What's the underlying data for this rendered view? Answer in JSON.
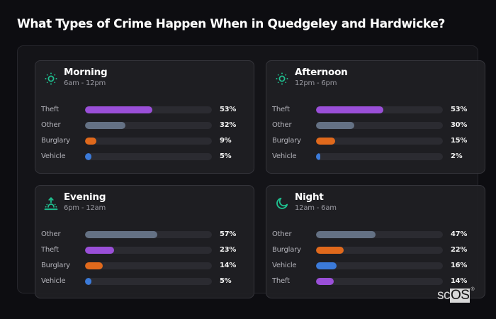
{
  "title": "What Types of Crime Happen When in Quedgeley and Hardwicke?",
  "brand": {
    "sc": "sc",
    "os": "OS",
    "reg": "®"
  },
  "colors": {
    "Theft": "#9a4fd8",
    "Other": "#647184",
    "Burglary": "#e0691c",
    "Vehicle": "#3b7ad9",
    "icon": "#1fbf8f",
    "track": "#2b2b31"
  },
  "periods": [
    {
      "name": "Morning",
      "time": "6am - 12pm",
      "icon": "sun-icon",
      "rows": [
        {
          "label": "Theft",
          "value": 53,
          "pct": "53%"
        },
        {
          "label": "Other",
          "value": 32,
          "pct": "32%"
        },
        {
          "label": "Burglary",
          "value": 9,
          "pct": "9%"
        },
        {
          "label": "Vehicle",
          "value": 5,
          "pct": "5%"
        }
      ]
    },
    {
      "name": "Afternoon",
      "time": "12pm - 6pm",
      "icon": "sun-icon",
      "rows": [
        {
          "label": "Theft",
          "value": 53,
          "pct": "53%"
        },
        {
          "label": "Other",
          "value": 30,
          "pct": "30%"
        },
        {
          "label": "Burglary",
          "value": 15,
          "pct": "15%"
        },
        {
          "label": "Vehicle",
          "value": 2,
          "pct": "2%"
        }
      ]
    },
    {
      "name": "Evening",
      "time": "6pm - 12am",
      "icon": "sunrise-icon",
      "rows": [
        {
          "label": "Other",
          "value": 57,
          "pct": "57%"
        },
        {
          "label": "Theft",
          "value": 23,
          "pct": "23%"
        },
        {
          "label": "Burglary",
          "value": 14,
          "pct": "14%"
        },
        {
          "label": "Vehicle",
          "value": 5,
          "pct": "5%"
        }
      ]
    },
    {
      "name": "Night",
      "time": "12am - 6am",
      "icon": "moon-icon",
      "rows": [
        {
          "label": "Other",
          "value": 47,
          "pct": "47%"
        },
        {
          "label": "Burglary",
          "value": 22,
          "pct": "22%"
        },
        {
          "label": "Vehicle",
          "value": 16,
          "pct": "16%"
        },
        {
          "label": "Theft",
          "value": 14,
          "pct": "14%"
        }
      ]
    }
  ],
  "chart_data": {
    "type": "bar",
    "orientation": "horizontal",
    "title": "What Types of Crime Happen When in Quedgeley and Hardwicke?",
    "xlabel": "",
    "ylabel": "",
    "xlim": [
      0,
      100
    ],
    "grid": false,
    "legend": "none",
    "panels": [
      {
        "title": "Morning",
        "subtitle": "6am - 12pm",
        "categories": [
          "Theft",
          "Other",
          "Burglary",
          "Vehicle"
        ],
        "values": [
          53,
          32,
          9,
          5
        ]
      },
      {
        "title": "Afternoon",
        "subtitle": "12pm - 6pm",
        "categories": [
          "Theft",
          "Other",
          "Burglary",
          "Vehicle"
        ],
        "values": [
          53,
          30,
          15,
          2
        ]
      },
      {
        "title": "Evening",
        "subtitle": "6pm - 12am",
        "categories": [
          "Other",
          "Theft",
          "Burglary",
          "Vehicle"
        ],
        "values": [
          57,
          23,
          14,
          5
        ]
      },
      {
        "title": "Night",
        "subtitle": "12am - 6am",
        "categories": [
          "Other",
          "Burglary",
          "Vehicle",
          "Theft"
        ],
        "values": [
          47,
          22,
          16,
          14
        ]
      }
    ]
  }
}
